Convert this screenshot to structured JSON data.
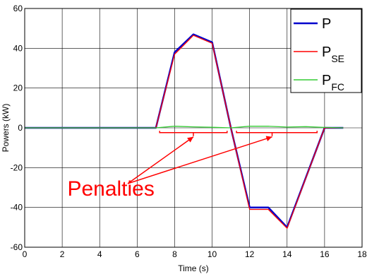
{
  "chart_data": {
    "type": "line",
    "xlabel": "Time (s)",
    "ylabel": "Powers (kW)",
    "xlim": [
      0,
      18
    ],
    "ylim": [
      -60,
      60
    ],
    "xticks": [
      0,
      2,
      4,
      6,
      8,
      10,
      12,
      14,
      16,
      18
    ],
    "yticks": [
      -60,
      -40,
      -20,
      0,
      20,
      40,
      60
    ],
    "grid": true,
    "legend_position": "top-right",
    "series": [
      {
        "name": "P",
        "name_sub": "",
        "color": "#0000cc",
        "x": [
          0,
          7,
          8,
          9,
          10,
          11,
          12,
          13,
          14,
          16,
          17
        ],
        "y": [
          0,
          0,
          38,
          47,
          43,
          0,
          -40,
          -40,
          -50,
          0,
          0
        ]
      },
      {
        "name": "P",
        "name_sub": "SE",
        "color": "#ff0000",
        "x": [
          0,
          7,
          8,
          9,
          10,
          11,
          12,
          13,
          14,
          16,
          17
        ],
        "y": [
          0,
          0,
          37,
          46.5,
          42.5,
          0,
          -41,
          -41,
          -50.5,
          0,
          0
        ]
      },
      {
        "name": "P",
        "name_sub": "FC",
        "color": "#33cc33",
        "x": [
          0,
          7,
          8,
          9,
          10,
          11,
          12,
          13,
          14,
          15,
          16,
          17
        ],
        "y": [
          0,
          0,
          0.8,
          0.5,
          0.3,
          0,
          0.8,
          0.8,
          0.4,
          0.6,
          0.2,
          0
        ]
      }
    ],
    "annotation": {
      "text": "Penalties",
      "color": "#ff0000",
      "text_pos": [
        4.6,
        -34
      ],
      "arrow_origin": [
        5.5,
        -28
      ],
      "braces": [
        {
          "x0": 7.2,
          "x1": 10.8,
          "y": -1.5,
          "depth": 2.5,
          "tip": [
            9,
            -4
          ]
        },
        {
          "x0": 11.3,
          "x1": 15.6,
          "y": -1.5,
          "depth": 2.5,
          "tip": [
            13.2,
            -4
          ]
        }
      ]
    }
  }
}
